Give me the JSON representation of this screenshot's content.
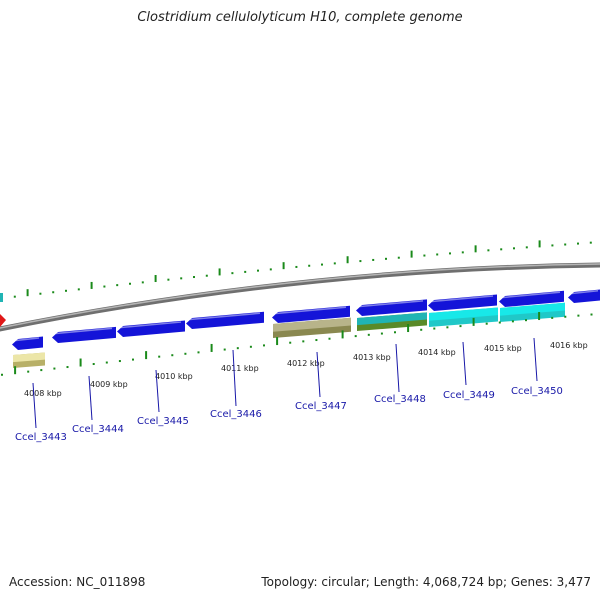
{
  "title": "Clostridium cellulolyticum H10, complete genome",
  "footer": {
    "accession": "Accession: NC_011898",
    "summary": "Topology: circular; Length: 4,068,724 bp; Genes: 3,477"
  },
  "colors": {
    "cds": "#1414d8",
    "rrna_light": "#ece6a8",
    "rrna_dark": "#b8b48a",
    "teal": "#20b4b4",
    "cyan": "#18e8e8",
    "tick": "#1a8a1a",
    "backbone": "#808080",
    "label": "#1818a8"
  },
  "ruler": [
    "4008 kbp",
    "4009 kbp",
    "4010 kbp",
    "4011 kbp",
    "4012 kbp",
    "4013 kbp",
    "4014 kbp",
    "4015 kbp",
    "4016 kbp"
  ],
  "genes": [
    {
      "label": "Ccel_3443"
    },
    {
      "label": "Ccel_3444"
    },
    {
      "label": "Ccel_3445"
    },
    {
      "label": "Ccel_3446"
    },
    {
      "label": "Ccel_3447"
    },
    {
      "label": "Ccel_3448"
    },
    {
      "label": "Ccel_3449"
    },
    {
      "label": "Ccel_3450"
    }
  ]
}
